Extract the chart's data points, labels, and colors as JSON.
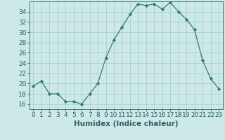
{
  "x": [
    0,
    1,
    2,
    3,
    4,
    5,
    6,
    7,
    8,
    9,
    10,
    11,
    12,
    13,
    14,
    15,
    16,
    17,
    18,
    19,
    20,
    21,
    22,
    23
  ],
  "y": [
    19.5,
    20.5,
    18.0,
    18.0,
    16.5,
    16.5,
    16.0,
    18.0,
    20.0,
    25.0,
    28.5,
    31.0,
    33.5,
    35.5,
    35.2,
    35.5,
    34.5,
    35.8,
    34.0,
    32.5,
    30.5,
    24.5,
    21.0,
    19.0
  ],
  "line_color": "#2e7d6e",
  "marker": "D",
  "marker_size": 2.2,
  "bg_color": "#cce8e8",
  "grid_color": "#aacece",
  "xlabel": "Humidex (Indice chaleur)",
  "xlim": [
    -0.5,
    23.5
  ],
  "ylim": [
    15.0,
    36.0
  ],
  "yticks": [
    16,
    18,
    20,
    22,
    24,
    26,
    28,
    30,
    32,
    34
  ],
  "xticks": [
    0,
    1,
    2,
    3,
    4,
    5,
    6,
    7,
    8,
    9,
    10,
    11,
    12,
    13,
    14,
    15,
    16,
    17,
    18,
    19,
    20,
    21,
    22,
    23
  ],
  "tick_color": "#2e6060",
  "label_fontsize": 6.5,
  "xlabel_fontsize": 7.5
}
